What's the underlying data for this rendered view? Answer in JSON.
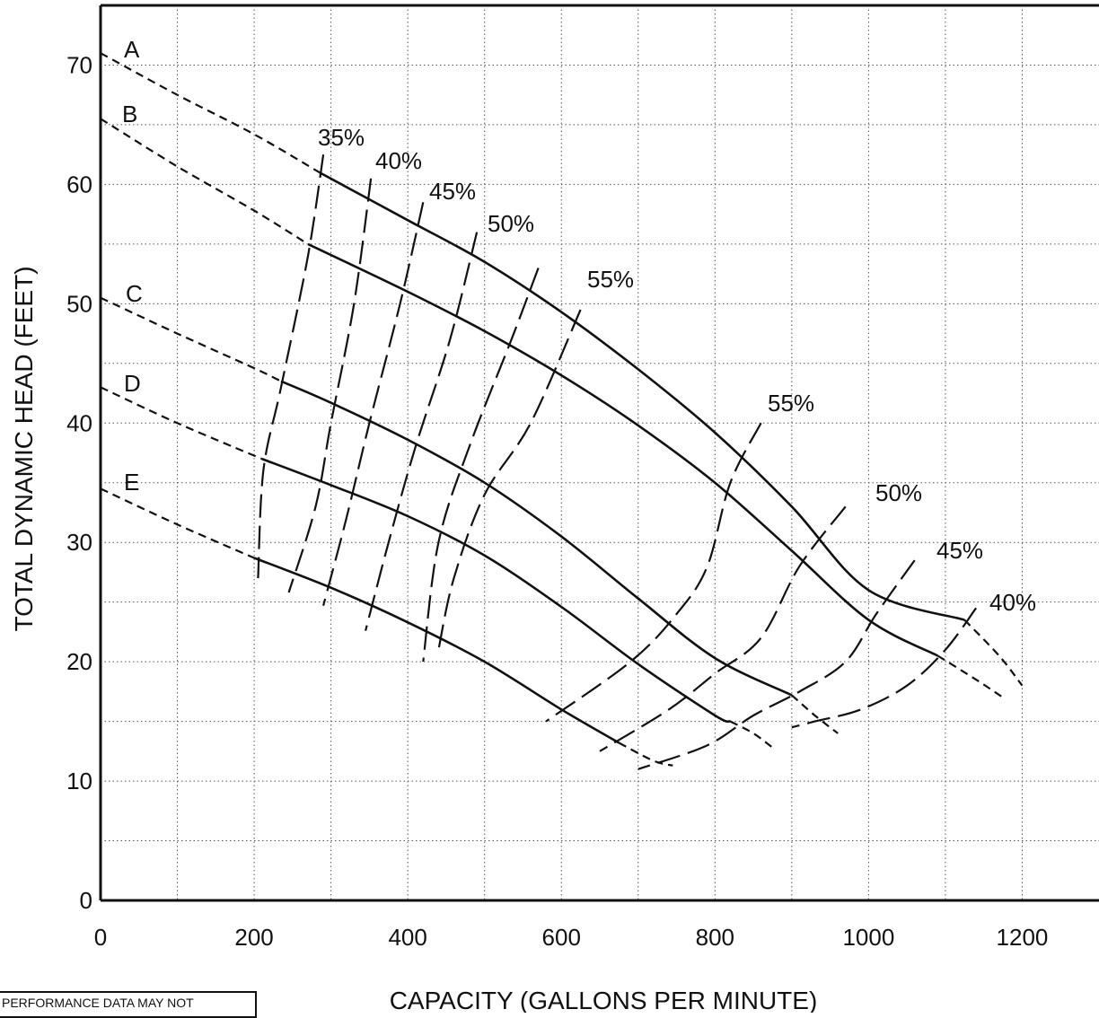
{
  "chart_data": {
    "type": "line",
    "title": "",
    "xlabel": "CAPACITY (GALLONS PER MINUTE)",
    "ylabel": "TOTAL DYNAMIC HEAD (FEET)",
    "xlim": [
      0,
      1300
    ],
    "ylim": [
      0,
      75
    ],
    "xticks": [
      0,
      200,
      400,
      600,
      800,
      1000,
      1200
    ],
    "yticks": [
      0,
      10,
      20,
      30,
      40,
      50,
      60,
      70
    ],
    "grid": true,
    "head_curves": [
      {
        "name": "A",
        "solid": [
          [
            285,
            61
          ],
          [
            400,
            57
          ],
          [
            500,
            53.5
          ],
          [
            600,
            49.3
          ],
          [
            700,
            44.5
          ],
          [
            800,
            39.2
          ],
          [
            900,
            33
          ],
          [
            1000,
            26
          ],
          [
            1125,
            23.5
          ]
        ],
        "dashed_low": [
          [
            0,
            71
          ],
          [
            100,
            67.5
          ],
          [
            200,
            64.2
          ],
          [
            285,
            61
          ]
        ],
        "dashed_high": [
          [
            1125,
            23.5
          ],
          [
            1170,
            20.5
          ],
          [
            1200,
            18
          ]
        ]
      },
      {
        "name": "B",
        "solid": [
          [
            270,
            55
          ],
          [
            400,
            51
          ],
          [
            500,
            47.7
          ],
          [
            600,
            44
          ],
          [
            700,
            39.8
          ],
          [
            800,
            35
          ],
          [
            900,
            29.3
          ],
          [
            1000,
            23.5
          ],
          [
            1090,
            20.5
          ]
        ],
        "dashed_low": [
          [
            0,
            65.5
          ],
          [
            100,
            61.5
          ],
          [
            200,
            57.8
          ],
          [
            270,
            55
          ]
        ],
        "dashed_high": [
          [
            1090,
            20.5
          ],
          [
            1140,
            18.5
          ],
          [
            1175,
            17
          ]
        ]
      },
      {
        "name": "C",
        "solid": [
          [
            235,
            43.5
          ],
          [
            300,
            41.7
          ],
          [
            400,
            38.6
          ],
          [
            500,
            35
          ],
          [
            600,
            30.5
          ],
          [
            700,
            25.3
          ],
          [
            800,
            20.3
          ],
          [
            900,
            17.2
          ]
        ],
        "dashed_low": [
          [
            0,
            50.5
          ],
          [
            100,
            47.5
          ],
          [
            200,
            44.6
          ],
          [
            235,
            43.5
          ]
        ],
        "dashed_high": [
          [
            900,
            17.2
          ],
          [
            930,
            15.5
          ],
          [
            960,
            14
          ]
        ]
      },
      {
        "name": "D",
        "solid": [
          [
            210,
            37
          ],
          [
            300,
            34.8
          ],
          [
            400,
            32.2
          ],
          [
            500,
            28.9
          ],
          [
            600,
            24.6
          ],
          [
            700,
            19.8
          ],
          [
            800,
            15.5
          ],
          [
            820,
            15
          ]
        ],
        "dashed_low": [
          [
            0,
            43
          ],
          [
            100,
            40
          ],
          [
            210,
            37
          ]
        ],
        "dashed_high": [
          [
            820,
            15
          ],
          [
            850,
            14
          ],
          [
            875,
            12.8
          ]
        ]
      },
      {
        "name": "E",
        "solid": [
          [
            200,
            28.7
          ],
          [
            300,
            26.2
          ],
          [
            400,
            23.3
          ],
          [
            500,
            20
          ],
          [
            600,
            16
          ],
          [
            675,
            13.2
          ]
        ],
        "dashed_low": [
          [
            0,
            34.5
          ],
          [
            100,
            31.5
          ],
          [
            200,
            28.7
          ]
        ],
        "dashed_high": [
          [
            675,
            13.2
          ],
          [
            720,
            11.7
          ],
          [
            745,
            11.3
          ]
        ]
      }
    ],
    "efficiency_curves": [
      {
        "label": "35%",
        "points": [
          [
            290,
            62.5
          ],
          [
            270,
            54
          ],
          [
            235,
            43
          ],
          [
            212,
            36
          ],
          [
            205,
            27
          ]
        ]
      },
      {
        "label": "40%",
        "points": [
          [
            352,
            60.5
          ],
          [
            330,
            50
          ],
          [
            300,
            40
          ],
          [
            280,
            33
          ],
          [
            245,
            25.8
          ]
        ]
      },
      {
        "label": "45%",
        "points": [
          [
            420,
            58.5
          ],
          [
            390,
            50
          ],
          [
            350,
            40
          ],
          [
            320,
            32
          ],
          [
            290,
            24.7
          ]
        ]
      },
      {
        "label": "50%",
        "points": [
          [
            490,
            56
          ],
          [
            455,
            47
          ],
          [
            410,
            38
          ],
          [
            375,
            30
          ],
          [
            345,
            22.6
          ]
        ]
      },
      {
        "label": "55%",
        "points": [
          [
            570,
            53
          ],
          [
            535,
            47
          ],
          [
            480,
            38
          ],
          [
            440,
            30
          ],
          [
            420,
            20
          ]
        ]
      },
      {
        "label": "55%",
        "points": [
          [
            625,
            49.5
          ],
          [
            560,
            40
          ],
          [
            500,
            34
          ],
          [
            460,
            27
          ],
          [
            440,
            21
          ]
        ]
      },
      {
        "label": "55%",
        "points": [
          [
            860,
            40
          ],
          [
            820,
            35
          ],
          [
            790,
            28
          ],
          [
            750,
            24
          ],
          [
            690,
            20
          ],
          [
            580,
            15
          ]
        ]
      },
      {
        "label": "50%",
        "points": [
          [
            970,
            33
          ],
          [
            910,
            28
          ],
          [
            860,
            22
          ],
          [
            800,
            19
          ],
          [
            740,
            16
          ],
          [
            650,
            12.5
          ]
        ]
      },
      {
        "label": "45%",
        "points": [
          [
            1060,
            28.5
          ],
          [
            1010,
            24
          ],
          [
            970,
            20
          ],
          [
            910,
            17.5
          ],
          [
            850,
            15.5
          ],
          [
            790,
            13
          ],
          [
            700,
            11
          ]
        ]
      },
      {
        "label": "40%",
        "points": [
          [
            1140,
            24.5
          ],
          [
            1100,
            21
          ],
          [
            1050,
            18
          ],
          [
            990,
            16
          ],
          [
            930,
            15
          ],
          [
            900,
            14.5
          ]
        ]
      }
    ],
    "efficiency_label_positions_label": [
      "35%",
      "40%",
      "45%",
      "50%",
      "55%",
      "55%",
      "50%",
      "45%",
      "40%"
    ]
  },
  "labels": {
    "curve_A": "A",
    "curve_B": "B",
    "curve_C": "C",
    "curve_D": "D",
    "curve_E": "E",
    "eff_35": "35%",
    "eff_40_left": "40%",
    "eff_45_left": "45%",
    "eff_50_left": "50%",
    "eff_55_left": "55%",
    "eff_55_right": "55%",
    "eff_50_right": "50%",
    "eff_45_right": "45%",
    "eff_40_right": "40%"
  },
  "note": "PERFORMANCE DATA MAY NOT"
}
